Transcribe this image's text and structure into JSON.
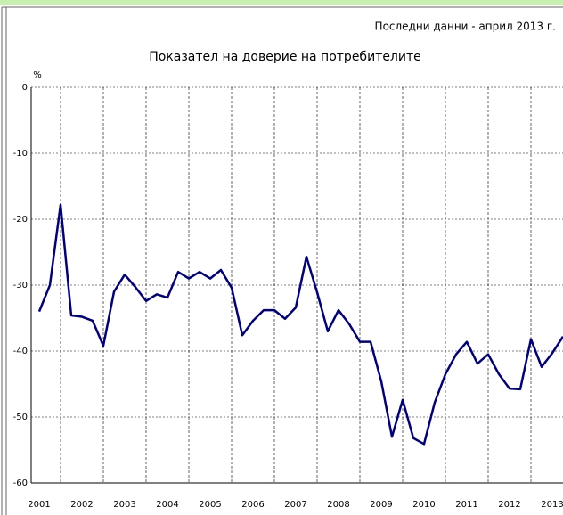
{
  "chart_data": {
    "type": "line",
    "title": "Показател на доверие на потребителите",
    "subtitle": "Последни данни - април 2013 г.",
    "y_label": "%",
    "categories": [
      "2001",
      null,
      null,
      null,
      "2002",
      null,
      null,
      null,
      "2003",
      null,
      null,
      null,
      "2004",
      null,
      null,
      null,
      "2005",
      null,
      null,
      null,
      "2006",
      null,
      null,
      null,
      "2007",
      null,
      null,
      null,
      "2008",
      null,
      null,
      null,
      "2009",
      null,
      null,
      null,
      "2010",
      null,
      null,
      null,
      "2011",
      null,
      null,
      null,
      "2012",
      null,
      null,
      null,
      "2013",
      null
    ],
    "series": [
      {
        "name": "Показател на доверие",
        "color": "#000080",
        "values": [
          -34,
          -30,
          -17.8,
          -34.6,
          -34.8,
          -35.4,
          -39.2,
          -31,
          -28.4,
          -30.3,
          -32.4,
          -31.4,
          -31.9,
          -28,
          -29,
          -28,
          -29,
          -27.7,
          -30.4,
          -37.6,
          -35.4,
          -33.8,
          -33.8,
          -35.1,
          -33.4,
          -25.7,
          -31.1,
          -37,
          -33.8,
          -35.9,
          -38.6,
          -38.6,
          -44.6,
          -53,
          -47.4,
          -53.2,
          -54.1,
          -47.8,
          -43.5,
          -40.5,
          -38.6,
          -41.9,
          -40.5,
          -43.5,
          -45.7,
          -45.8,
          -38.2,
          -42.4,
          -40.3,
          -37.8
        ]
      }
    ],
    "ylim": [
      -60,
      0
    ],
    "yticks": [
      0,
      -10,
      -20,
      -30,
      -40,
      -50,
      -60
    ],
    "grid": true
  }
}
